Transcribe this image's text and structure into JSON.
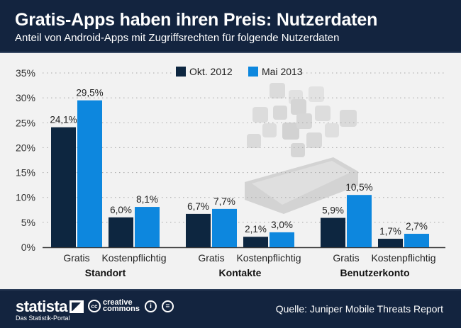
{
  "header": {
    "title": "Gratis-Apps haben ihren Preis: Nutzerdaten",
    "subtitle": "Anteil von Android-Apps mit Zugriffsrechten für folgende Nutzerdaten"
  },
  "colors": {
    "header_bg": "#13243f",
    "series_okt": "#0d2640",
    "series_mai": "#0d87de",
    "background": "#f2f2f2"
  },
  "chart_data": {
    "type": "bar",
    "title": "Gratis-Apps haben ihren Preis: Nutzerdaten",
    "subtitle": "Anteil von Android-Apps mit Zugriffsrechten für folgende Nutzerdaten",
    "xlabel": "",
    "ylabel": "",
    "ylim": [
      0,
      35
    ],
    "yticks": [
      0,
      5,
      10,
      15,
      20,
      25,
      30,
      35
    ],
    "ytick_labels": [
      "0%",
      "5%",
      "10%",
      "15%",
      "20%",
      "25%",
      "30%",
      "35%"
    ],
    "grid": true,
    "legend_position": "top-center",
    "groups": [
      "Standort",
      "Kontakte",
      "Benutzerkonto"
    ],
    "categories": [
      "Gratis",
      "Kostenpflichtig",
      "Gratis",
      "Kostenpflichtig",
      "Gratis",
      "Kostenpflichtig"
    ],
    "series": [
      {
        "name": "Okt. 2012",
        "color": "#0d2640",
        "values": [
          24.1,
          6.0,
          6.7,
          2.1,
          5.9,
          1.7
        ],
        "labels": [
          "24,1%",
          "6,0%",
          "6,7%",
          "2,1%",
          "5,9%",
          "1,7%"
        ]
      },
      {
        "name": "Mai 2013",
        "color": "#0d87de",
        "values": [
          29.5,
          8.1,
          7.7,
          3.0,
          10.5,
          2.7
        ],
        "labels": [
          "29,5%",
          "8,1%",
          "7,7%",
          "3,0%",
          "10,5%",
          "2,7%"
        ]
      }
    ]
  },
  "footer": {
    "brand": "statista",
    "brand_tagline": "Das Statistik-Portal",
    "cc_symbol": "cc",
    "cc_line1": "creative",
    "cc_line2": "commons",
    "cc_by_symbol": "i",
    "cc_nd_symbol": "=",
    "source": "Quelle: Juniper Mobile Threats Report"
  }
}
